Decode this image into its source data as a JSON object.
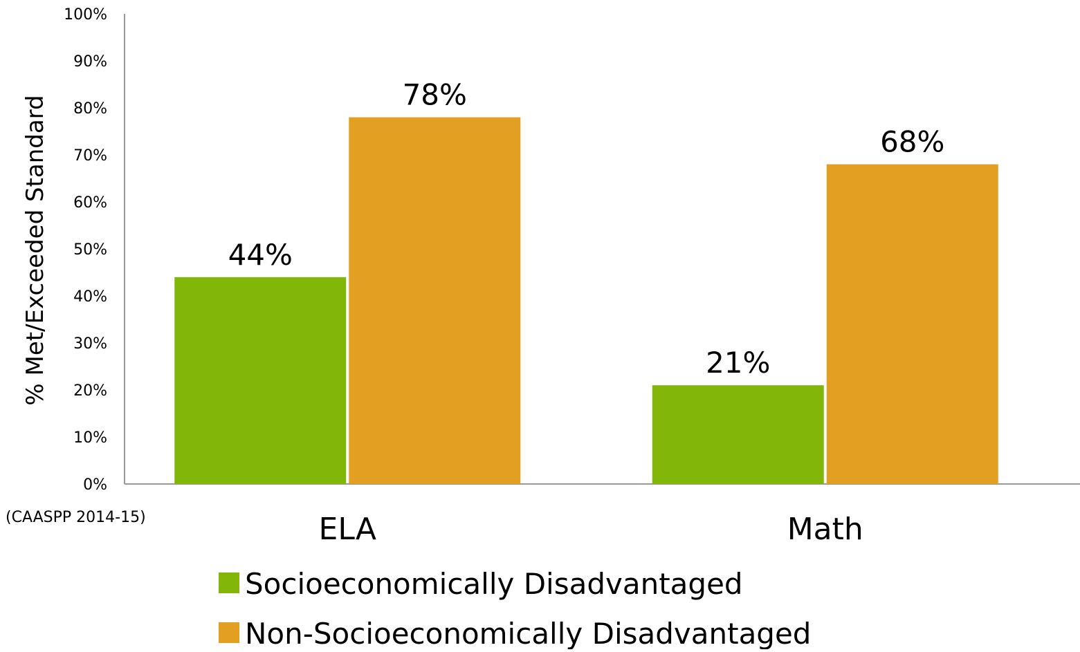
{
  "chart_data": {
    "type": "bar",
    "categories": [
      "ELA",
      "Math"
    ],
    "series": [
      {
        "name": "Socioeconomically Disadvantaged",
        "values": [
          44,
          21
        ],
        "color": "#82b70a"
      },
      {
        "name": "Non-Socioeconomically Disadvantaged",
        "values": [
          78,
          68
        ],
        "color": "#e39f21"
      }
    ],
    "ylabel": "% Met/Exceeded Standard",
    "ylim": [
      0,
      100
    ],
    "ytick_labels": [
      "0%",
      "10%",
      "20%",
      "30%",
      "40%",
      "50%",
      "60%",
      "70%",
      "80%",
      "90%",
      "100%"
    ],
    "data_labels": [
      [
        "44%",
        "21%"
      ],
      [
        "78%",
        "68%"
      ]
    ],
    "legend_position": "bottom",
    "grid": false
  },
  "source_note": "(CAASPP 2014-15)"
}
